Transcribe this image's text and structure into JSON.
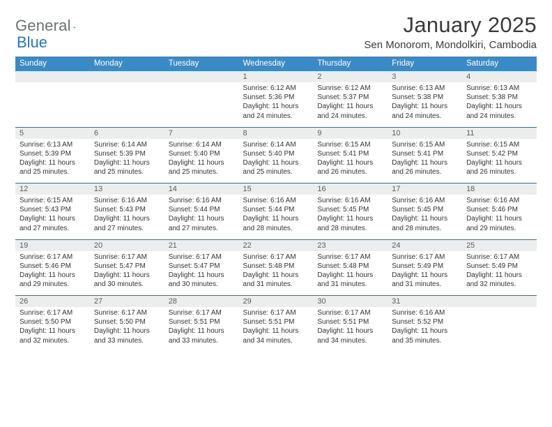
{
  "logo": {
    "text1": "General",
    "text2": "Blue"
  },
  "header": {
    "title": "January 2025",
    "location": "Sen Monorom, Mondolkiri, Cambodia"
  },
  "colors": {
    "header_bg": "#3b8ac4",
    "daynum_bg": "#eceded",
    "rule": "#2f6ea4",
    "logo_gray": "#6b7074",
    "logo_blue": "#2874b9"
  },
  "weekdays": [
    "Sunday",
    "Monday",
    "Tuesday",
    "Wednesday",
    "Thursday",
    "Friday",
    "Saturday"
  ],
  "weeks": [
    [
      null,
      null,
      null,
      {
        "n": "1",
        "sr": "6:12 AM",
        "ss": "5:36 PM",
        "dl": "11 hours and 24 minutes."
      },
      {
        "n": "2",
        "sr": "6:12 AM",
        "ss": "5:37 PM",
        "dl": "11 hours and 24 minutes."
      },
      {
        "n": "3",
        "sr": "6:13 AM",
        "ss": "5:38 PM",
        "dl": "11 hours and 24 minutes."
      },
      {
        "n": "4",
        "sr": "6:13 AM",
        "ss": "5:38 PM",
        "dl": "11 hours and 24 minutes."
      }
    ],
    [
      {
        "n": "5",
        "sr": "6:13 AM",
        "ss": "5:39 PM",
        "dl": "11 hours and 25 minutes."
      },
      {
        "n": "6",
        "sr": "6:14 AM",
        "ss": "5:39 PM",
        "dl": "11 hours and 25 minutes."
      },
      {
        "n": "7",
        "sr": "6:14 AM",
        "ss": "5:40 PM",
        "dl": "11 hours and 25 minutes."
      },
      {
        "n": "8",
        "sr": "6:14 AM",
        "ss": "5:40 PM",
        "dl": "11 hours and 25 minutes."
      },
      {
        "n": "9",
        "sr": "6:15 AM",
        "ss": "5:41 PM",
        "dl": "11 hours and 26 minutes."
      },
      {
        "n": "10",
        "sr": "6:15 AM",
        "ss": "5:41 PM",
        "dl": "11 hours and 26 minutes."
      },
      {
        "n": "11",
        "sr": "6:15 AM",
        "ss": "5:42 PM",
        "dl": "11 hours and 26 minutes."
      }
    ],
    [
      {
        "n": "12",
        "sr": "6:15 AM",
        "ss": "5:43 PM",
        "dl": "11 hours and 27 minutes."
      },
      {
        "n": "13",
        "sr": "6:16 AM",
        "ss": "5:43 PM",
        "dl": "11 hours and 27 minutes."
      },
      {
        "n": "14",
        "sr": "6:16 AM",
        "ss": "5:44 PM",
        "dl": "11 hours and 27 minutes."
      },
      {
        "n": "15",
        "sr": "6:16 AM",
        "ss": "5:44 PM",
        "dl": "11 hours and 28 minutes."
      },
      {
        "n": "16",
        "sr": "6:16 AM",
        "ss": "5:45 PM",
        "dl": "11 hours and 28 minutes."
      },
      {
        "n": "17",
        "sr": "6:16 AM",
        "ss": "5:45 PM",
        "dl": "11 hours and 28 minutes."
      },
      {
        "n": "18",
        "sr": "6:16 AM",
        "ss": "5:46 PM",
        "dl": "11 hours and 29 minutes."
      }
    ],
    [
      {
        "n": "19",
        "sr": "6:17 AM",
        "ss": "5:46 PM",
        "dl": "11 hours and 29 minutes."
      },
      {
        "n": "20",
        "sr": "6:17 AM",
        "ss": "5:47 PM",
        "dl": "11 hours and 30 minutes."
      },
      {
        "n": "21",
        "sr": "6:17 AM",
        "ss": "5:47 PM",
        "dl": "11 hours and 30 minutes."
      },
      {
        "n": "22",
        "sr": "6:17 AM",
        "ss": "5:48 PM",
        "dl": "11 hours and 31 minutes."
      },
      {
        "n": "23",
        "sr": "6:17 AM",
        "ss": "5:48 PM",
        "dl": "11 hours and 31 minutes."
      },
      {
        "n": "24",
        "sr": "6:17 AM",
        "ss": "5:49 PM",
        "dl": "11 hours and 31 minutes."
      },
      {
        "n": "25",
        "sr": "6:17 AM",
        "ss": "5:49 PM",
        "dl": "11 hours and 32 minutes."
      }
    ],
    [
      {
        "n": "26",
        "sr": "6:17 AM",
        "ss": "5:50 PM",
        "dl": "11 hours and 32 minutes."
      },
      {
        "n": "27",
        "sr": "6:17 AM",
        "ss": "5:50 PM",
        "dl": "11 hours and 33 minutes."
      },
      {
        "n": "28",
        "sr": "6:17 AM",
        "ss": "5:51 PM",
        "dl": "11 hours and 33 minutes."
      },
      {
        "n": "29",
        "sr": "6:17 AM",
        "ss": "5:51 PM",
        "dl": "11 hours and 34 minutes."
      },
      {
        "n": "30",
        "sr": "6:17 AM",
        "ss": "5:51 PM",
        "dl": "11 hours and 34 minutes."
      },
      {
        "n": "31",
        "sr": "6:16 AM",
        "ss": "5:52 PM",
        "dl": "11 hours and 35 minutes."
      },
      null
    ]
  ],
  "labels": {
    "sunrise": "Sunrise: ",
    "sunset": "Sunset: ",
    "daylight": "Daylight: "
  }
}
